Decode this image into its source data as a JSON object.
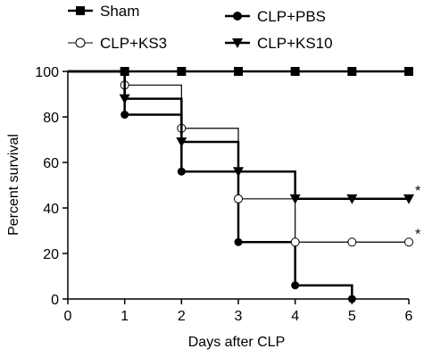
{
  "chart_data": {
    "type": "line",
    "step": true,
    "title": "",
    "xlabel": "Days after CLP",
    "ylabel": "Percent survival",
    "xlim": [
      0,
      6
    ],
    "ylim": [
      0,
      100
    ],
    "xticks": [
      0,
      1,
      2,
      3,
      4,
      5,
      6
    ],
    "yticks": [
      0,
      20,
      40,
      60,
      80,
      100
    ],
    "grid": false,
    "legend_position": "top",
    "series": [
      {
        "name": "Sham",
        "marker": "filled-square",
        "x": [
          1,
          2,
          3,
          4,
          5,
          6
        ],
        "values": [
          100,
          100,
          100,
          100,
          100,
          100
        ]
      },
      {
        "name": "CLP+PBS",
        "marker": "filled-circle",
        "x": [
          1,
          2,
          3,
          4,
          5
        ],
        "values": [
          81,
          56,
          25,
          6,
          0
        ]
      },
      {
        "name": "CLP+KS3",
        "marker": "open-circle",
        "x": [
          1,
          2,
          3,
          4,
          5,
          6
        ],
        "values": [
          94,
          75,
          44,
          25,
          25,
          25
        ]
      },
      {
        "name": "CLP+KS10",
        "marker": "filled-triangle-down",
        "x": [
          1,
          2,
          3,
          4,
          5,
          6
        ],
        "values": [
          88,
          69,
          56,
          44,
          44,
          44
        ]
      }
    ],
    "annotations": [
      {
        "text": "*",
        "series": "CLP+KS10"
      },
      {
        "text": "*",
        "series": "CLP+KS3"
      }
    ]
  }
}
